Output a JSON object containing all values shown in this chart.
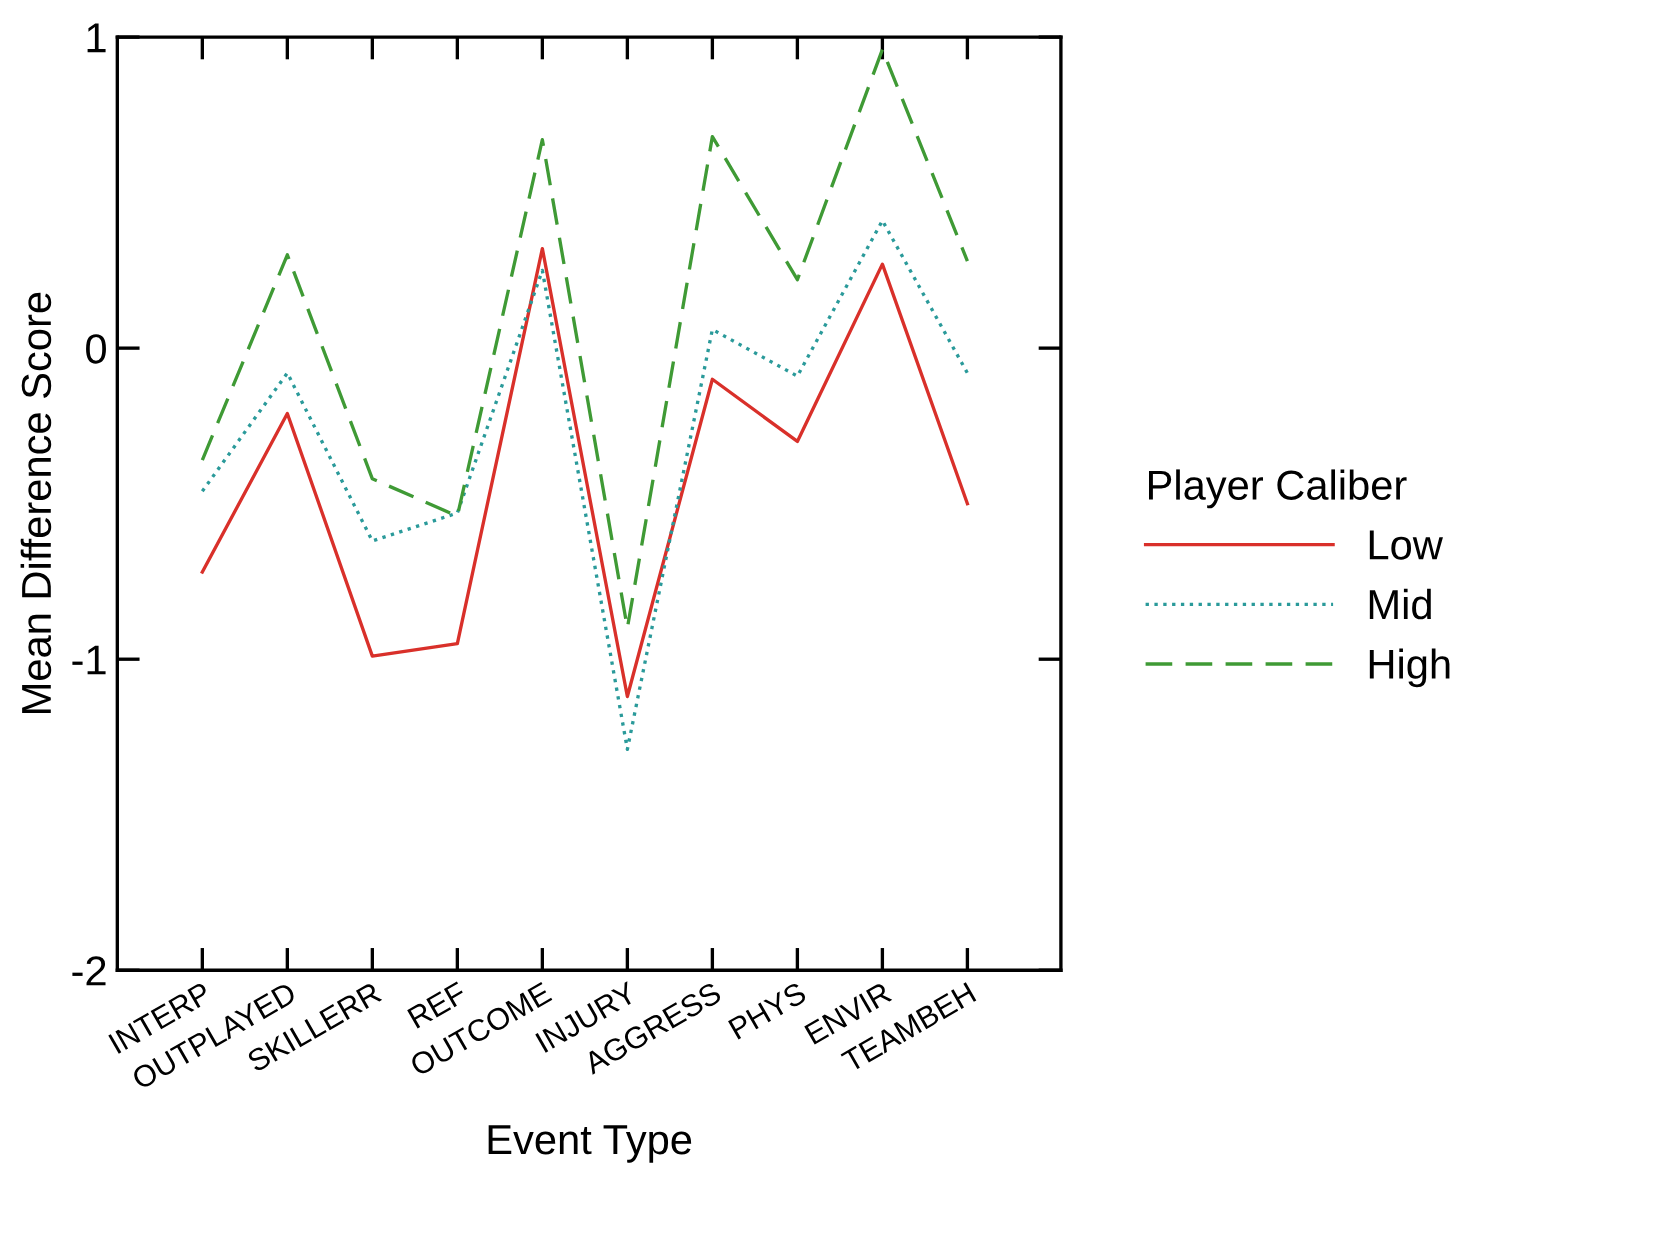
{
  "chart_data": {
    "type": "line",
    "xlabel": "Event Type",
    "ylabel": "Mean Difference Score",
    "legend_title": "Player Caliber",
    "legend": "right",
    "grid": false,
    "marker": "none",
    "categories": [
      "INTERP",
      "OUTPLAYED",
      "SKILLERR",
      "REF",
      "OUTCOME",
      "INJURY",
      "AGGRESS",
      "PHYS",
      "ENVIR",
      "TEAMBEH"
    ],
    "ylim": [
      -2,
      1
    ],
    "yticks": [
      -2,
      -1,
      0,
      1
    ],
    "series": [
      {
        "name": "Low",
        "color": "#d9302a",
        "line_style": "solid",
        "values": [
          -0.72,
          -0.21,
          -0.99,
          -0.95,
          0.32,
          -1.12,
          -0.1,
          -0.3,
          0.27,
          -0.5
        ]
      },
      {
        "name": "Mid",
        "color": "#2a9a9a",
        "line_style": "dotted",
        "values": [
          -0.46,
          -0.08,
          -0.62,
          -0.53,
          0.25,
          -1.29,
          0.06,
          -0.09,
          0.41,
          -0.08
        ]
      },
      {
        "name": "High",
        "color": "#3f9a35",
        "line_style": "dashed",
        "values": [
          -0.36,
          0.3,
          -0.42,
          -0.54,
          0.67,
          -0.9,
          0.68,
          0.22,
          0.96,
          0.28
        ]
      }
    ]
  }
}
